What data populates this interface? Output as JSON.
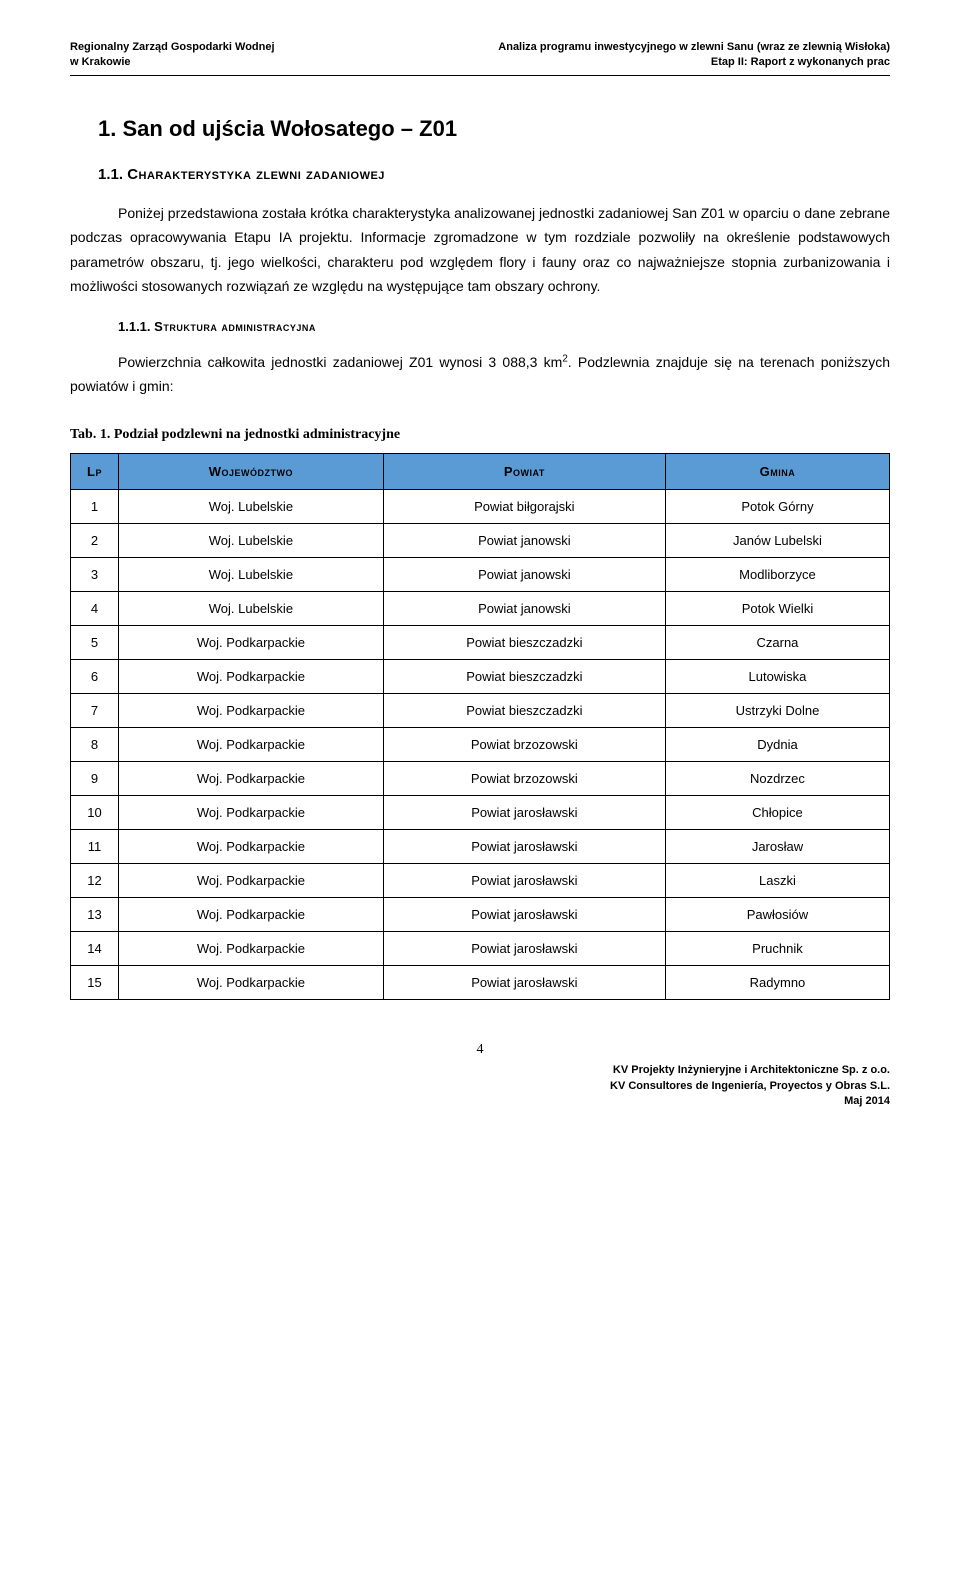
{
  "header": {
    "left_line1": "Regionalny Zarząd Gospodarki Wodnej",
    "left_line2": "w Krakowie",
    "right_line1": "Analiza programu inwestycyjnego w zlewni Sanu (wraz ze zlewnią Wisłoka)",
    "right_line2": "Etap II: Raport z wykonanych prac"
  },
  "section": {
    "number": "1.",
    "title": "San od ujścia Wołosatego – Z01"
  },
  "subsection": {
    "number": "1.1.",
    "title": "Charakterystyka zlewni zadaniowej"
  },
  "para1": "Poniżej przedstawiona została krótka charakterystyka analizowanej jednostki zadaniowej San Z01 w oparciu o dane zebrane podczas opracowywania Etapu IA projektu. Informacje zgromadzone w tym rozdziale pozwoliły na określenie podstawowych parametrów obszaru, tj. jego wielkości, charakteru pod względem flory i fauny oraz co najważniejsze stopnia zurbanizowania i możliwości stosowanych rozwiązań ze względu na występujące tam obszary ochrony.",
  "subsubsection": {
    "number": "1.1.1.",
    "title": "Struktura administracyjna"
  },
  "para2_a": "Powierzchnia całkowita jednostki zadaniowej Z01 wynosi 3 088,3 km",
  "para2_b": ". Podzlewnia znajduje się na terenach poniższych powiatów i gmin:",
  "table": {
    "caption": "Tab. 1. Podział podzlewni na jednostki administracyjne",
    "headers": {
      "lp": "Lp",
      "woj": "Województwo",
      "powiat": "Powiat",
      "gmina": "Gmina"
    },
    "header_bg": "#5b9bd5",
    "rows": [
      {
        "lp": "1",
        "woj": "Woj. Lubelskie",
        "powiat": "Powiat biłgorajski",
        "gmina": "Potok Górny"
      },
      {
        "lp": "2",
        "woj": "Woj. Lubelskie",
        "powiat": "Powiat janowski",
        "gmina": "Janów Lubelski"
      },
      {
        "lp": "3",
        "woj": "Woj. Lubelskie",
        "powiat": "Powiat janowski",
        "gmina": "Modliborzyce"
      },
      {
        "lp": "4",
        "woj": "Woj. Lubelskie",
        "powiat": "Powiat janowski",
        "gmina": "Potok Wielki"
      },
      {
        "lp": "5",
        "woj": "Woj. Podkarpackie",
        "powiat": "Powiat bieszczadzki",
        "gmina": "Czarna"
      },
      {
        "lp": "6",
        "woj": "Woj. Podkarpackie",
        "powiat": "Powiat bieszczadzki",
        "gmina": "Lutowiska"
      },
      {
        "lp": "7",
        "woj": "Woj. Podkarpackie",
        "powiat": "Powiat bieszczadzki",
        "gmina": "Ustrzyki Dolne"
      },
      {
        "lp": "8",
        "woj": "Woj. Podkarpackie",
        "powiat": "Powiat brzozowski",
        "gmina": "Dydnia"
      },
      {
        "lp": "9",
        "woj": "Woj. Podkarpackie",
        "powiat": "Powiat brzozowski",
        "gmina": "Nozdrzec"
      },
      {
        "lp": "10",
        "woj": "Woj. Podkarpackie",
        "powiat": "Powiat jarosławski",
        "gmina": "Chłopice"
      },
      {
        "lp": "11",
        "woj": "Woj. Podkarpackie",
        "powiat": "Powiat jarosławski",
        "gmina": "Jarosław"
      },
      {
        "lp": "12",
        "woj": "Woj. Podkarpackie",
        "powiat": "Powiat jarosławski",
        "gmina": "Laszki"
      },
      {
        "lp": "13",
        "woj": "Woj. Podkarpackie",
        "powiat": "Powiat jarosławski",
        "gmina": "Pawłosiów"
      },
      {
        "lp": "14",
        "woj": "Woj. Podkarpackie",
        "powiat": "Powiat jarosławski",
        "gmina": "Pruchnik"
      },
      {
        "lp": "15",
        "woj": "Woj. Podkarpackie",
        "powiat": "Powiat jarosławski",
        "gmina": "Radymno"
      }
    ]
  },
  "footer": {
    "page_number": "4",
    "line1": "KV Projekty Inżynieryjne i Architektoniczne Sp. z o.o.",
    "line2": "KV Consultores de Ingeniería, Proyectos y Obras S.L.",
    "line3": "Maj 2014"
  }
}
